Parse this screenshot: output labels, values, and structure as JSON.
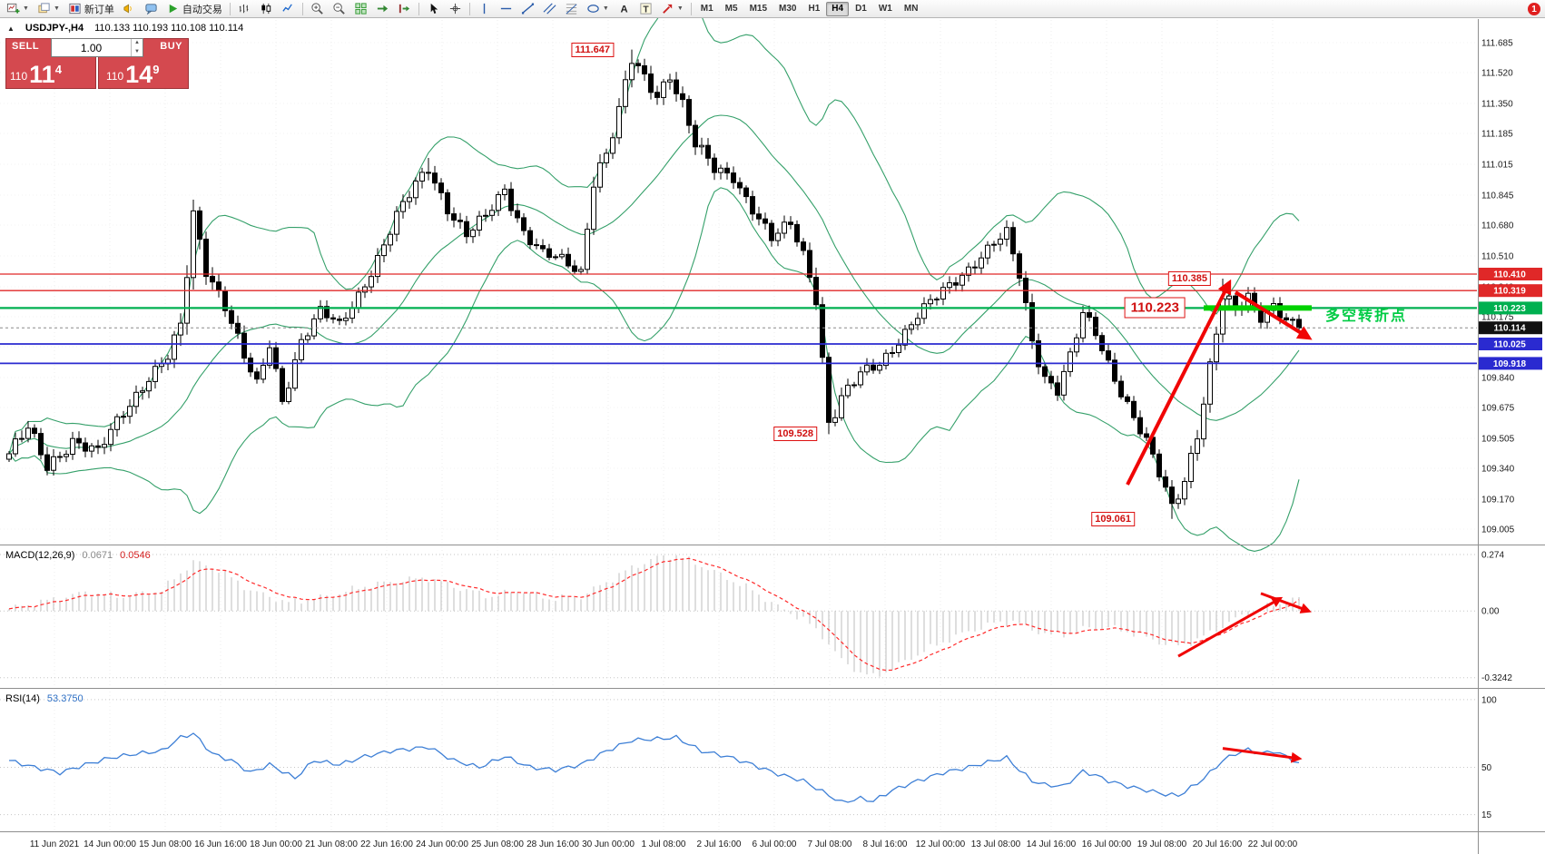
{
  "app": {
    "notification": "1"
  },
  "toolbar": {
    "buttons": [
      {
        "name": "new-chart",
        "icon": "new-chart",
        "dd": true
      },
      {
        "name": "profiles",
        "icon": "profiles",
        "dd": true
      },
      {
        "name": "new-order",
        "icon": "order",
        "label": "新订单"
      },
      {
        "name": "alerts",
        "icon": "alerts"
      },
      {
        "name": "chat",
        "icon": "chat"
      },
      {
        "name": "auto-trading",
        "icon": "play",
        "label": "自动交易"
      },
      {
        "sep": true
      },
      {
        "name": "chart-bars",
        "icon": "bars"
      },
      {
        "name": "chart-candles",
        "icon": "candles"
      },
      {
        "name": "chart-line",
        "icon": "line"
      },
      {
        "sep": true
      },
      {
        "name": "zoom-in",
        "icon": "zoom-in"
      },
      {
        "name": "zoom-out",
        "icon": "zoom-out"
      },
      {
        "name": "tile-windows",
        "icon": "tile"
      },
      {
        "name": "auto-scroll",
        "icon": "auto-scroll"
      },
      {
        "name": "chart-shift",
        "icon": "chart-shift"
      },
      {
        "sep": true
      },
      {
        "name": "cursor",
        "icon": "cursor"
      },
      {
        "name": "crosshair",
        "icon": "crosshair"
      },
      {
        "sep": true
      },
      {
        "name": "vertical-line",
        "icon": "vline"
      },
      {
        "name": "horizontal-line",
        "icon": "hline"
      },
      {
        "name": "trendline",
        "icon": "trendline"
      },
      {
        "name": "equidistant-channel",
        "icon": "channel"
      },
      {
        "name": "fibonacci-retracement",
        "icon": "fibonacci"
      },
      {
        "name": "shapes",
        "icon": "shapes",
        "dd": true
      },
      {
        "name": "text",
        "icon": "textA"
      },
      {
        "name": "text-label",
        "icon": "textT"
      },
      {
        "name": "arrows",
        "icon": "arrows",
        "dd": true
      },
      {
        "sep": true
      }
    ],
    "timeframes": [
      "M1",
      "M5",
      "M15",
      "M30",
      "H1",
      "H4",
      "D1",
      "W1",
      "MN"
    ],
    "active_timeframe": "H4"
  },
  "symbol_bar": {
    "marker": "▲",
    "symbol": "USDJPY-,H4",
    "ohlc": "110.133 110.193 110.108 110.114"
  },
  "trade_panel": {
    "sell_label": "SELL",
    "buy_label": "BUY",
    "volume": "1.00",
    "sell_price": {
      "small": "110",
      "big": "11",
      "sup": "4"
    },
    "buy_price": {
      "small": "110",
      "big": "14",
      "sup": "9"
    },
    "spin_up": "▲",
    "spin_down": "▼"
  },
  "main_chart": {
    "price_ticks": [
      "111.685",
      "111.520",
      "111.350",
      "111.185",
      "111.015",
      "110.845",
      "110.680",
      "110.510",
      "110.340",
      "110.175",
      "110.010",
      "109.840",
      "109.675",
      "109.505",
      "109.340",
      "109.170",
      "109.005"
    ],
    "price_tags": [
      {
        "label": "110.410",
        "color": "#e02828"
      },
      {
        "label": "110.319",
        "color": "#e02828"
      },
      {
        "label": "110.223",
        "color": "#00b050"
      },
      {
        "label": "110.114",
        "color": "#111111"
      },
      {
        "label": "110.025",
        "color": "#2a2ad0"
      },
      {
        "label": "109.918",
        "color": "#2a2ad0"
      }
    ],
    "hlines": [
      {
        "price": 110.41,
        "color": "#e02828",
        "width": 1.3
      },
      {
        "price": 110.319,
        "color": "#e02828",
        "width": 1.3
      },
      {
        "price": 110.223,
        "color": "#00b050",
        "width": 2.2
      },
      {
        "price": 110.025,
        "color": "#2a2ad0",
        "width": 1.8
      },
      {
        "price": 109.918,
        "color": "#2a2ad0",
        "width": 1.8
      }
    ],
    "bid_line": {
      "price": 110.114
    },
    "green_segment": {
      "price": 110.223,
      "from_bar": 188,
      "to_bar": 205,
      "color": "#00d200",
      "width": 6
    },
    "annotations": [
      {
        "text": "111.647",
        "bar": 96,
        "price": 111.647
      },
      {
        "text": "109.528",
        "bar": 128,
        "price": 109.528
      },
      {
        "text": "109.061",
        "bar": 178,
        "price": 109.061
      },
      {
        "text": "110.385",
        "bar": 190,
        "price": 110.385
      },
      {
        "text": "110.223",
        "bar": 186,
        "price": 110.223,
        "big": true
      }
    ],
    "note": {
      "text": "多空转折点",
      "color": "#00cc44",
      "bar": 206,
      "price": 110.2
    },
    "arrows": [
      {
        "from": [
          176,
          109.25
        ],
        "to": [
          192,
          110.36
        ]
      },
      {
        "from": [
          193,
          110.31
        ],
        "to": [
          204.5,
          110.06
        ]
      }
    ]
  },
  "macd_panel": {
    "name": "MACD(12,26,9)",
    "value_main": "0.0671",
    "value_signal": "0.0546",
    "ticks": [
      "0.274",
      "0.00",
      "-0.3242"
    ],
    "arrows": [
      {
        "from": [
          184,
          -0.22
        ],
        "to": [
          200,
          0.06
        ]
      },
      {
        "from": [
          197,
          0.085
        ],
        "to": [
          204.5,
          0.0
        ]
      }
    ]
  },
  "rsi_panel": {
    "name": "RSI(14)",
    "value": "53.3750",
    "ticks": [
      "100",
      "50",
      "15"
    ],
    "arrows": [
      {
        "from": [
          191,
          64
        ],
        "to": [
          203,
          56.5
        ]
      }
    ]
  },
  "time_axis": {
    "labels": [
      "11 Jun 2021",
      "14 Jun 00:00",
      "15 Jun 08:00",
      "16 Jun 16:00",
      "18 Jun 00:00",
      "21 Jun 08:00",
      "22 Jun 16:00",
      "24 Jun 00:00",
      "25 Jun 08:00",
      "28 Jun 16:00",
      "30 Jun 00:00",
      "1 Jul 08:00",
      "2 Jul 16:00",
      "6 Jul 00:00",
      "7 Jul 08:00",
      "8 Jul 16:00",
      "12 Jul 00:00",
      "13 Jul 08:00",
      "14 Jul 16:00",
      "16 Jul 00:00",
      "19 Jul 08:00",
      "20 Jul 16:00",
      "22 Jul 00:00"
    ]
  },
  "chart_data": {
    "type": "candlestick+indicators",
    "symbol": "USDJPY-",
    "timeframe": "H4",
    "ohlc_current": {
      "open": 110.133,
      "high": 110.193,
      "low": 110.108,
      "close": 110.114
    },
    "bars_count": 204,
    "final_close": 110.114,
    "close_keypoints": [
      [
        0,
        109.42,
        0.1
      ],
      [
        3,
        109.55,
        0.1
      ],
      [
        6,
        109.35,
        0.1
      ],
      [
        10,
        109.5,
        0.09
      ],
      [
        14,
        109.42,
        0.09
      ],
      [
        18,
        109.65,
        0.09
      ],
      [
        22,
        109.85,
        0.09
      ],
      [
        25,
        109.95,
        0.08
      ],
      [
        27,
        110.1,
        0.14
      ],
      [
        29,
        110.72,
        0.16
      ],
      [
        31,
        110.45,
        0.12
      ],
      [
        34,
        110.25,
        0.1
      ],
      [
        37,
        109.95,
        0.1
      ],
      [
        39,
        109.78,
        0.1
      ],
      [
        41,
        110.02,
        0.09
      ],
      [
        43,
        109.72,
        0.1
      ],
      [
        46,
        110.05,
        0.09
      ],
      [
        49,
        110.2,
        0.08
      ],
      [
        52,
        110.12,
        0.08
      ],
      [
        55,
        110.3,
        0.08
      ],
      [
        58,
        110.5,
        0.09
      ],
      [
        61,
        110.72,
        0.09
      ],
      [
        64,
        110.9,
        0.09
      ],
      [
        66,
        111.0,
        0.09
      ],
      [
        69,
        110.78,
        0.09
      ],
      [
        72,
        110.62,
        0.09
      ],
      [
        75,
        110.72,
        0.08
      ],
      [
        78,
        110.88,
        0.09
      ],
      [
        81,
        110.65,
        0.09
      ],
      [
        84,
        110.52,
        0.08
      ],
      [
        87,
        110.48,
        0.08
      ],
      [
        90,
        110.42,
        0.09
      ],
      [
        92,
        110.95,
        0.13
      ],
      [
        94,
        111.08,
        0.1
      ],
      [
        96,
        111.3,
        0.11
      ],
      [
        98,
        111.58,
        0.12
      ],
      [
        100,
        111.48,
        0.1
      ],
      [
        102,
        111.4,
        0.1
      ],
      [
        104,
        111.52,
        0.1
      ],
      [
        106,
        111.35,
        0.1
      ],
      [
        108,
        111.12,
        0.1
      ],
      [
        111,
        110.98,
        0.09
      ],
      [
        114,
        110.95,
        0.08
      ],
      [
        117,
        110.78,
        0.09
      ],
      [
        120,
        110.6,
        0.09
      ],
      [
        123,
        110.68,
        0.08
      ],
      [
        125,
        110.52,
        0.09
      ],
      [
        127,
        110.3,
        0.12
      ],
      [
        129,
        109.6,
        0.14
      ],
      [
        131,
        109.72,
        0.1
      ],
      [
        134,
        109.85,
        0.09
      ],
      [
        137,
        109.92,
        0.08
      ],
      [
        140,
        110.05,
        0.08
      ],
      [
        143,
        110.18,
        0.08
      ],
      [
        146,
        110.28,
        0.08
      ],
      [
        149,
        110.38,
        0.08
      ],
      [
        152,
        110.48,
        0.08
      ],
      [
        155,
        110.58,
        0.08
      ],
      [
        157,
        110.62,
        0.09
      ],
      [
        159,
        110.4,
        0.1
      ],
      [
        161,
        110.05,
        0.11
      ],
      [
        163,
        109.85,
        0.1
      ],
      [
        165,
        109.78,
        0.09
      ],
      [
        167,
        109.95,
        0.09
      ],
      [
        169,
        110.18,
        0.09
      ],
      [
        171,
        110.08,
        0.09
      ],
      [
        173,
        109.92,
        0.09
      ],
      [
        176,
        109.7,
        0.09
      ],
      [
        179,
        109.48,
        0.09
      ],
      [
        181,
        109.3,
        0.09
      ],
      [
        183,
        109.12,
        0.09
      ],
      [
        185,
        109.28,
        0.1
      ],
      [
        187,
        109.55,
        0.11
      ],
      [
        189,
        109.9,
        0.12
      ],
      [
        191,
        110.28,
        0.11
      ],
      [
        193,
        110.2,
        0.09
      ],
      [
        195,
        110.28,
        0.08
      ],
      [
        197,
        110.18,
        0.08
      ],
      [
        199,
        110.25,
        0.08
      ],
      [
        201,
        110.16,
        0.08
      ],
      [
        203,
        110.114,
        0.07
      ]
    ],
    "pinned_extremes": [
      {
        "bar": 29,
        "high": 110.82
      },
      {
        "bar": 66,
        "high": 111.05
      },
      {
        "bar": 98,
        "high": 111.647
      },
      {
        "bar": 129,
        "low": 109.528
      },
      {
        "bar": 183,
        "low": 109.061
      },
      {
        "bar": 191,
        "high": 110.385
      }
    ],
    "bollinger": {
      "period": 20,
      "deviation": 2
    },
    "macd": {
      "params": [
        12,
        26,
        9
      ],
      "current_main": 0.0671,
      "current_signal": 0.0546,
      "range": [
        -0.3242,
        0.274
      ],
      "keypoints": [
        [
          0,
          0.01
        ],
        [
          6,
          0.05
        ],
        [
          12,
          0.09
        ],
        [
          18,
          0.07
        ],
        [
          24,
          0.1
        ],
        [
          29,
          0.24
        ],
        [
          33,
          0.2
        ],
        [
          38,
          0.1
        ],
        [
          44,
          0.04
        ],
        [
          50,
          0.07
        ],
        [
          56,
          0.12
        ],
        [
          62,
          0.15
        ],
        [
          66,
          0.16
        ],
        [
          71,
          0.11
        ],
        [
          76,
          0.07
        ],
        [
          80,
          0.1
        ],
        [
          85,
          0.06
        ],
        [
          90,
          0.07
        ],
        [
          94,
          0.14
        ],
        [
          98,
          0.21
        ],
        [
          102,
          0.26
        ],
        [
          105,
          0.27
        ],
        [
          109,
          0.22
        ],
        [
          113,
          0.16
        ],
        [
          117,
          0.1
        ],
        [
          121,
          0.02
        ],
        [
          125,
          -0.04
        ],
        [
          128,
          -0.12
        ],
        [
          131,
          -0.24
        ],
        [
          134,
          -0.3
        ],
        [
          136,
          -0.32
        ],
        [
          139,
          -0.28
        ],
        [
          143,
          -0.21
        ],
        [
          147,
          -0.15
        ],
        [
          151,
          -0.1
        ],
        [
          155,
          -0.06
        ],
        [
          158,
          -0.05
        ],
        [
          161,
          -0.09
        ],
        [
          164,
          -0.12
        ],
        [
          167,
          -0.11
        ],
        [
          170,
          -0.08
        ],
        [
          173,
          -0.08
        ],
        [
          176,
          -0.1
        ],
        [
          179,
          -0.13
        ],
        [
          182,
          -0.16
        ],
        [
          184,
          -0.17
        ],
        [
          187,
          -0.14
        ],
        [
          190,
          -0.09
        ],
        [
          193,
          -0.04
        ],
        [
          196,
          0.0
        ],
        [
          199,
          0.03
        ],
        [
          203,
          0.0671
        ]
      ]
    },
    "rsi": {
      "period": 14,
      "current": 53.375,
      "levels": [
        100,
        50,
        15
      ],
      "keypoints": [
        [
          0,
          55
        ],
        [
          4,
          50
        ],
        [
          8,
          46
        ],
        [
          12,
          52
        ],
        [
          16,
          57
        ],
        [
          20,
          60
        ],
        [
          24,
          62
        ],
        [
          27,
          72
        ],
        [
          29,
          75
        ],
        [
          32,
          60
        ],
        [
          35,
          55
        ],
        [
          38,
          46
        ],
        [
          41,
          52
        ],
        [
          45,
          42
        ],
        [
          48,
          55
        ],
        [
          52,
          52
        ],
        [
          56,
          58
        ],
        [
          60,
          62
        ],
        [
          64,
          64
        ],
        [
          66,
          65
        ],
        [
          70,
          55
        ],
        [
          74,
          50
        ],
        [
          78,
          58
        ],
        [
          82,
          50
        ],
        [
          86,
          48
        ],
        [
          90,
          52
        ],
        [
          94,
          62
        ],
        [
          98,
          70
        ],
        [
          102,
          71
        ],
        [
          105,
          72
        ],
        [
          109,
          62
        ],
        [
          113,
          58
        ],
        [
          117,
          52
        ],
        [
          121,
          45
        ],
        [
          125,
          40
        ],
        [
          128,
          32
        ],
        [
          131,
          24
        ],
        [
          134,
          27
        ],
        [
          136,
          25
        ],
        [
          139,
          33
        ],
        [
          143,
          40
        ],
        [
          147,
          46
        ],
        [
          151,
          50
        ],
        [
          155,
          55
        ],
        [
          157,
          57
        ],
        [
          159,
          48
        ],
        [
          161,
          40
        ],
        [
          163,
          37
        ],
        [
          166,
          36
        ],
        [
          169,
          47
        ],
        [
          171,
          44
        ],
        [
          173,
          40
        ],
        [
          176,
          36
        ],
        [
          179,
          33
        ],
        [
          182,
          30
        ],
        [
          184,
          29
        ],
        [
          187,
          38
        ],
        [
          189,
          46
        ],
        [
          191,
          55
        ],
        [
          193,
          60
        ],
        [
          195,
          63
        ],
        [
          197,
          60
        ],
        [
          199,
          62
        ],
        [
          201,
          58
        ],
        [
          203,
          53.375
        ]
      ]
    },
    "key_levels": [
      111.647,
      110.41,
      110.385,
      110.319,
      110.223,
      110.114,
      110.025,
      109.918,
      109.528,
      109.061
    ]
  }
}
